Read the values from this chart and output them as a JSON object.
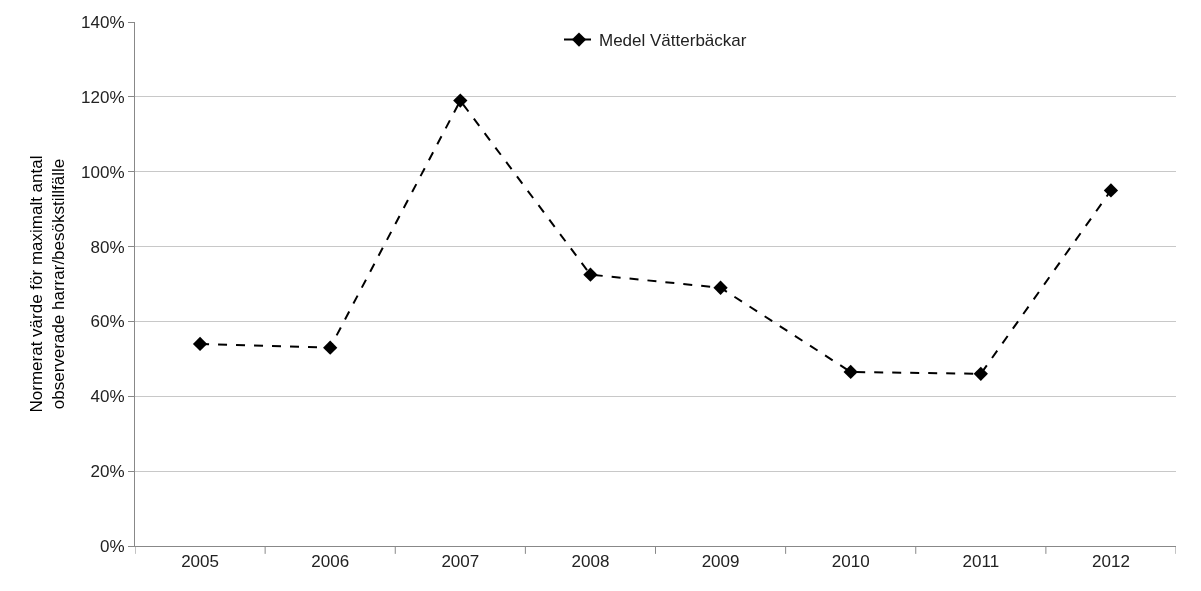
{
  "chart_data": {
    "type": "line",
    "ylabel": "Normerat värde för maximalt antal\nobserverade harrar/besökstillfälle",
    "categories": [
      "2005",
      "2006",
      "2007",
      "2008",
      "2009",
      "2010",
      "2011",
      "2012"
    ],
    "series": [
      {
        "name": "Medel Vätterbäckar",
        "color": "#000000",
        "values": [
          54,
          53,
          119,
          72.5,
          69,
          46.5,
          46,
          95
        ]
      }
    ],
    "ylim": [
      0,
      140
    ],
    "yticks": [
      {
        "value": 0,
        "label": "0%"
      },
      {
        "value": 20,
        "label": "20%"
      },
      {
        "value": 40,
        "label": "40%"
      },
      {
        "value": 60,
        "label": "60%"
      },
      {
        "value": 80,
        "label": "80%"
      },
      {
        "value": 100,
        "label": "100%"
      },
      {
        "value": 120,
        "label": "120%"
      },
      {
        "value": 140,
        "label": "140%"
      }
    ],
    "grid": "y",
    "legend": "top",
    "marker": "diamond",
    "line_style": "dashed"
  }
}
